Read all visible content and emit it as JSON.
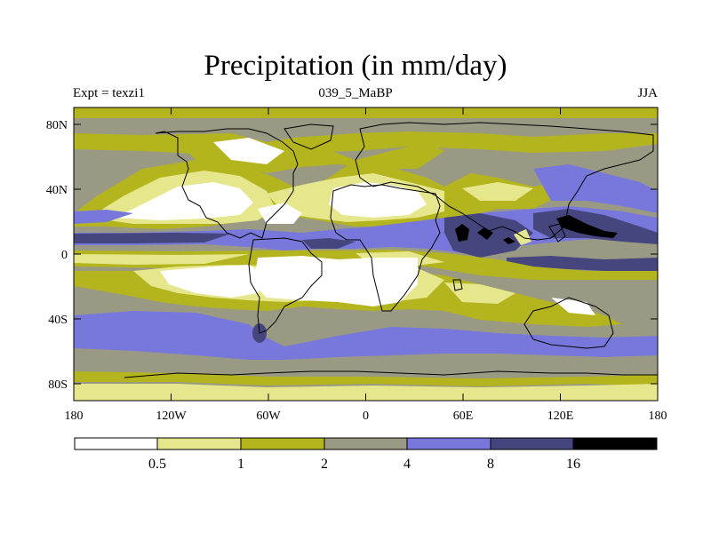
{
  "title": "Precipitation (in mm/day)",
  "left_label": "Expt = texzi1",
  "center_label": "039_5_MaBP",
  "right_label": "JJA",
  "x_ticks": [
    "180",
    "120W",
    "60W",
    "0",
    "60E",
    "120E",
    "180"
  ],
  "y_ticks": [
    "80N",
    "40N",
    "0",
    "40S",
    "80S"
  ],
  "colorbar": {
    "labels": [
      "0.5",
      "1",
      "2",
      "4",
      "8",
      "16"
    ],
    "colors": [
      "#ffffff",
      "#e6e68c",
      "#b4b41e",
      "#9a9a84",
      "#7878dc",
      "#46467e",
      "#000000"
    ]
  },
  "palette": {
    "white": "#ffffff",
    "pale": "#e6e68c",
    "olive": "#b4b41e",
    "gray": "#9a9a84",
    "blue": "#7878dc",
    "navy": "#46467e",
    "black": "#000000"
  }
}
